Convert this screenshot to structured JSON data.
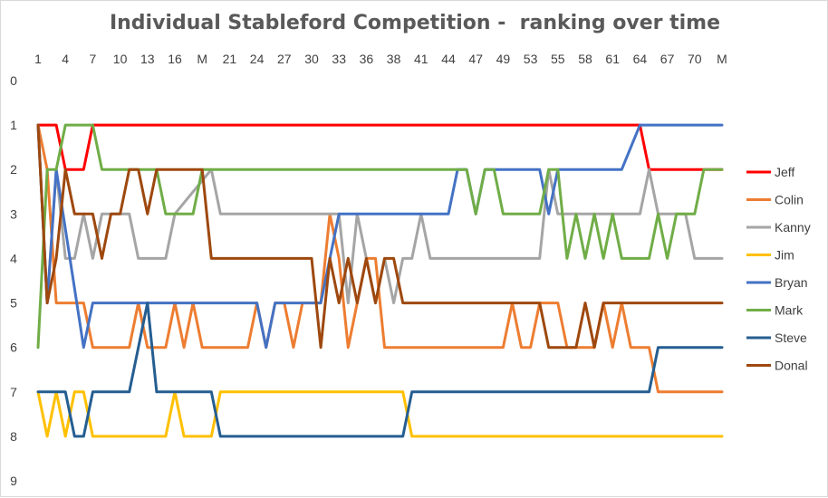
{
  "chart_data": {
    "type": "line",
    "title": "Individual Stableford Competition -  ranking over time",
    "x_tick_labels": [
      "1",
      "4",
      "7",
      "10",
      "13",
      "16",
      "M",
      "21",
      "24",
      "27",
      "30",
      "33",
      "36",
      "38",
      "41",
      "44",
      "47",
      "49",
      "53",
      "55",
      "58",
      "61",
      "64",
      "67",
      "70",
      "M"
    ],
    "y_tick_labels": [
      "0",
      "1",
      "2",
      "3",
      "4",
      "5",
      "6",
      "7",
      "8",
      "9"
    ],
    "ylim": [
      0,
      9
    ],
    "y_inverted": true,
    "grid": false,
    "legend_position": "right",
    "series": [
      {
        "name": "Jeff",
        "color": "#ff0000",
        "points": [
          [
            0,
            1
          ],
          [
            2,
            1
          ],
          [
            3,
            2
          ],
          [
            5,
            2
          ],
          [
            6,
            1
          ],
          [
            66,
            1
          ],
          [
            67,
            2
          ],
          [
            75,
            2
          ]
        ]
      },
      {
        "name": "Colin",
        "color": "#ed7d31",
        "points": [
          [
            0,
            1
          ],
          [
            1,
            2
          ],
          [
            2,
            5
          ],
          [
            5,
            5
          ],
          [
            6,
            6
          ],
          [
            10,
            6
          ],
          [
            11,
            5
          ],
          [
            12,
            6
          ],
          [
            14,
            6
          ],
          [
            15,
            5
          ],
          [
            16,
            6
          ],
          [
            17,
            5
          ],
          [
            18,
            6
          ],
          [
            23,
            6
          ],
          [
            24,
            5
          ],
          [
            25,
            6
          ],
          [
            26,
            5
          ],
          [
            27,
            5
          ],
          [
            28,
            6
          ],
          [
            29,
            5
          ],
          [
            31,
            5
          ],
          [
            32,
            3
          ],
          [
            33,
            4
          ],
          [
            34,
            6
          ],
          [
            35,
            5
          ],
          [
            36,
            4
          ],
          [
            37,
            4
          ],
          [
            38,
            6
          ],
          [
            51,
            6
          ],
          [
            52,
            5
          ],
          [
            53,
            6
          ],
          [
            54,
            6
          ],
          [
            55,
            5
          ],
          [
            57,
            5
          ],
          [
            58,
            6
          ],
          [
            61,
            6
          ],
          [
            62,
            5
          ],
          [
            63,
            6
          ],
          [
            64,
            5
          ],
          [
            65,
            6
          ],
          [
            67,
            6
          ],
          [
            68,
            7
          ],
          [
            75,
            7
          ]
        ]
      },
      {
        "name": "Kanny",
        "color": "#a5a5a5",
        "points": [
          [
            0,
            1
          ],
          [
            1,
            5
          ],
          [
            2,
            2
          ],
          [
            3,
            4
          ],
          [
            4,
            4
          ],
          [
            5,
            3
          ],
          [
            6,
            4
          ],
          [
            7,
            3
          ],
          [
            8,
            3
          ],
          [
            9,
            3
          ],
          [
            10,
            3
          ],
          [
            11,
            4
          ],
          [
            14,
            4
          ],
          [
            15,
            3
          ],
          [
            19,
            2
          ],
          [
            20,
            3
          ],
          [
            33,
            3
          ],
          [
            34,
            5
          ],
          [
            35,
            3
          ],
          [
            36,
            4
          ],
          [
            37,
            5
          ],
          [
            38,
            4
          ],
          [
            39,
            5
          ],
          [
            40,
            4
          ],
          [
            41,
            4
          ],
          [
            42,
            3
          ],
          [
            43,
            4
          ],
          [
            55,
            4
          ],
          [
            56,
            2
          ],
          [
            57,
            3
          ],
          [
            66,
            3
          ],
          [
            67,
            2
          ],
          [
            68,
            3
          ],
          [
            71,
            3
          ],
          [
            72,
            4
          ],
          [
            75,
            4
          ]
        ]
      },
      {
        "name": "Jim",
        "color": "#ffc000",
        "points": [
          [
            0,
            7
          ],
          [
            1,
            8
          ],
          [
            2,
            7
          ],
          [
            3,
            8
          ],
          [
            4,
            7
          ],
          [
            5,
            7
          ],
          [
            6,
            8
          ],
          [
            14,
            8
          ],
          [
            15,
            7
          ],
          [
            16,
            8
          ],
          [
            19,
            8
          ],
          [
            20,
            7
          ],
          [
            40,
            7
          ],
          [
            41,
            8
          ],
          [
            75,
            8
          ]
        ]
      },
      {
        "name": "Bryan",
        "color": "#4472c4",
        "points": [
          [
            0,
            1
          ],
          [
            1,
            5
          ],
          [
            2,
            2
          ],
          [
            5,
            6
          ],
          [
            6,
            5
          ],
          [
            24,
            5
          ],
          [
            25,
            6
          ],
          [
            26,
            5
          ],
          [
            31,
            5
          ],
          [
            33,
            3
          ],
          [
            45,
            3
          ],
          [
            46,
            2
          ],
          [
            47,
            2
          ],
          [
            48,
            3
          ],
          [
            49,
            2
          ],
          [
            55,
            2
          ],
          [
            56,
            3
          ],
          [
            57,
            2
          ],
          [
            62,
            2
          ],
          [
            63,
            2
          ],
          [
            64,
            2
          ],
          [
            66,
            1
          ],
          [
            75,
            1
          ]
        ]
      },
      {
        "name": "Mark",
        "color": "#70ad47",
        "points": [
          [
            0,
            6
          ],
          [
            1,
            2
          ],
          [
            2,
            2
          ],
          [
            3,
            1
          ],
          [
            6,
            1
          ],
          [
            7,
            2
          ],
          [
            13,
            2
          ],
          [
            14,
            3
          ],
          [
            17,
            3
          ],
          [
            18,
            2
          ],
          [
            47,
            2
          ],
          [
            48,
            3
          ],
          [
            49,
            2
          ],
          [
            50,
            2
          ],
          [
            51,
            3
          ],
          [
            55,
            3
          ],
          [
            56,
            2
          ],
          [
            57,
            2
          ],
          [
            58,
            4
          ],
          [
            59,
            3
          ],
          [
            60,
            4
          ],
          [
            61,
            3
          ],
          [
            62,
            4
          ],
          [
            63,
            3
          ],
          [
            64,
            4
          ],
          [
            67,
            4
          ],
          [
            68,
            3
          ],
          [
            69,
            4
          ],
          [
            70,
            3
          ],
          [
            71,
            3
          ],
          [
            72,
            3
          ],
          [
            73,
            2
          ],
          [
            75,
            2
          ]
        ]
      },
      {
        "name": "Steve",
        "color": "#255e91",
        "points": [
          [
            0,
            7
          ],
          [
            3,
            7
          ],
          [
            4,
            8
          ],
          [
            5,
            8
          ],
          [
            6,
            7
          ],
          [
            10,
            7
          ],
          [
            12,
            5
          ],
          [
            13,
            7
          ],
          [
            19,
            7
          ],
          [
            20,
            8
          ],
          [
            40,
            8
          ],
          [
            41,
            7
          ],
          [
            67,
            7
          ],
          [
            68,
            6
          ],
          [
            75,
            6
          ]
        ]
      },
      {
        "name": "Donal",
        "color": "#9e480e",
        "points": [
          [
            0,
            1
          ],
          [
            1,
            5
          ],
          [
            2,
            4
          ],
          [
            3,
            2
          ],
          [
            4,
            3
          ],
          [
            6,
            3
          ],
          [
            7,
            4
          ],
          [
            8,
            3
          ],
          [
            9,
            3
          ],
          [
            10,
            2
          ],
          [
            11,
            2
          ],
          [
            12,
            3
          ],
          [
            13,
            2
          ],
          [
            18,
            2
          ],
          [
            19,
            4
          ],
          [
            30,
            4
          ],
          [
            31,
            6
          ],
          [
            32,
            4
          ],
          [
            33,
            5
          ],
          [
            34,
            4
          ],
          [
            35,
            5
          ],
          [
            36,
            4
          ],
          [
            37,
            5
          ],
          [
            38,
            4
          ],
          [
            39,
            4
          ],
          [
            40,
            5
          ],
          [
            55,
            5
          ],
          [
            56,
            6
          ],
          [
            59,
            6
          ],
          [
            60,
            5
          ],
          [
            61,
            6
          ],
          [
            62,
            5
          ],
          [
            75,
            5
          ]
        ]
      }
    ]
  }
}
